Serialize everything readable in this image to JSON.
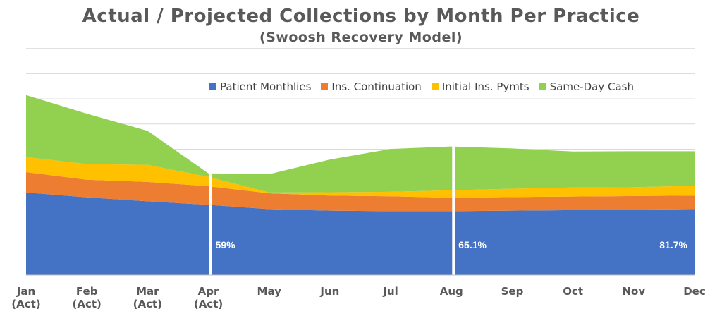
{
  "chart_data": {
    "type": "area",
    "stacked": true,
    "title": "Actual / Projected Collections by Month Per Practice",
    "subtitle": "(Swoosh Recovery Model)",
    "categories": [
      "Jan\n(Act)",
      "Feb\n(Act)",
      "Mar\n(Act)",
      "Apr\n(Act)",
      "May",
      "Jun",
      "Jul",
      "Aug",
      "Sep",
      "Oct",
      "Nov",
      "Dec"
    ],
    "series": [
      {
        "name": "Patient Monthlies",
        "color": "#4472C4",
        "values": [
          32.8,
          30.9,
          29.3,
          27.9,
          26.2,
          25.6,
          25.4,
          25.4,
          25.6,
          25.8,
          26.0,
          26.2
        ]
      },
      {
        "name": "Ins. Continuation",
        "color": "#ED7D31",
        "values": [
          8.1,
          7.0,
          7.7,
          7.4,
          6.3,
          6.0,
          5.9,
          5.3,
          5.4,
          5.4,
          5.4,
          5.4
        ]
      },
      {
        "name": "Initial Ins. Pymts",
        "color": "#FFC000",
        "values": [
          6.0,
          6.2,
          6.8,
          3.7,
          0.3,
          1.3,
          1.8,
          3.0,
          3.3,
          3.6,
          3.5,
          3.9
        ]
      },
      {
        "name": "Same-Day Cash",
        "color": "#92D050",
        "values": [
          24.6,
          20.0,
          13.5,
          1.4,
          7.3,
          13.0,
          17.0,
          17.4,
          16.0,
          14.3,
          14.3,
          13.7
        ]
      }
    ],
    "annotations": [
      {
        "text": "59%",
        "category": "Apr\n(Act)"
      },
      {
        "text": "65.1%",
        "category": "Aug"
      },
      {
        "text": "81.7%",
        "category": "Dec"
      }
    ],
    "dividers_after": [
      "Apr\n(Act)",
      "Aug"
    ],
    "ylim": [
      0,
      100
    ],
    "grid": true,
    "legend_position": "top-right"
  }
}
